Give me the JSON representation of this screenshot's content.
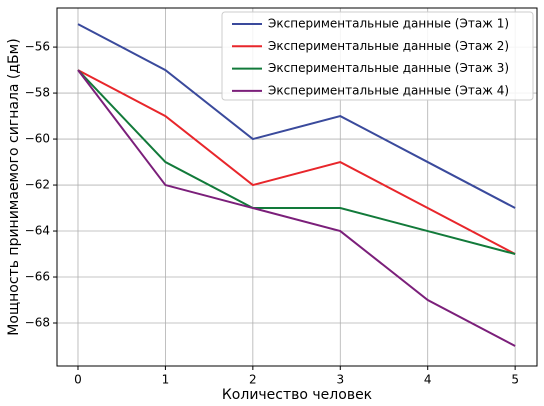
{
  "chart_data": {
    "type": "line",
    "x_label": "Количество человек",
    "y_label": "Мощность принимаемого сигнала (дБм)",
    "x": [
      0,
      1,
      2,
      3,
      4,
      5
    ],
    "series": [
      {
        "name": "Экспериментальные данные (Этаж 1)",
        "color": "#3a4a9c",
        "values": [
          -55,
          -57,
          -60,
          -59,
          -61,
          -63
        ]
      },
      {
        "name": "Экспериментальные данные (Этаж 2)",
        "color": "#e8262b",
        "values": [
          -57,
          -59,
          -62,
          -61,
          -63,
          -65
        ]
      },
      {
        "name": "Экспериментальные данные (Этаж 3)",
        "color": "#127a3a",
        "values": [
          -57,
          -61,
          -63,
          -63,
          -64,
          -65
        ]
      },
      {
        "name": "Экспериментальные данные (Этаж 4)",
        "color": "#7b1f7a",
        "values": [
          -57,
          -62,
          -63,
          -64,
          -67,
          -69
        ]
      }
    ],
    "xlim": [
      -0.24,
      5.25
    ],
    "ylim": [
      -69.87,
      -54.3
    ],
    "xticks": [
      0,
      1,
      2,
      3,
      4,
      5
    ],
    "yticks": [
      {
        "value": -68,
        "label": "−68"
      },
      {
        "value": -66,
        "label": "−66"
      },
      {
        "value": -64,
        "label": "−64"
      },
      {
        "value": -62,
        "label": "−62"
      },
      {
        "value": -60,
        "label": "−60"
      },
      {
        "value": -58,
        "label": "−58"
      },
      {
        "value": -56,
        "label": "−56"
      }
    ],
    "grid": true,
    "legend": "upper right"
  }
}
